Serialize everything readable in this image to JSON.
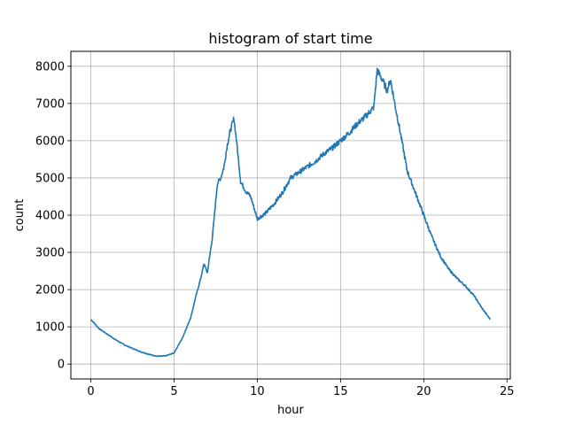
{
  "chart_data": {
    "type": "line",
    "title": "histogram of start time",
    "xlabel": "hour",
    "ylabel": "count",
    "xlim": [
      -1.2,
      25.2
    ],
    "ylim": [
      -400,
      8400
    ],
    "xticks": [
      0,
      5,
      10,
      15,
      20,
      25
    ],
    "yticks": [
      0,
      1000,
      2000,
      3000,
      4000,
      5000,
      6000,
      7000,
      8000
    ],
    "grid": true,
    "line_color": "#1f77b4",
    "series": [
      {
        "x": [
          0,
          0.5,
          1,
          1.5,
          2,
          2.5,
          3,
          3.5,
          4,
          4.5,
          5,
          5.5,
          6,
          6.3,
          6.6,
          6.8,
          7,
          7.3,
          7.6,
          7.8,
          8,
          8.2,
          8.4,
          8.6,
          8.8,
          9,
          9.3,
          9.6,
          10,
          10.5,
          11,
          11.5,
          12,
          12.5,
          13,
          13.5,
          14,
          14.5,
          15,
          15.5,
          16,
          16.5,
          17,
          17.2,
          17.5,
          17.8,
          18,
          18.3,
          18.6,
          19,
          19.5,
          20,
          20.5,
          21,
          21.5,
          22,
          22.5,
          23,
          23.5,
          24
        ],
        "y": [
          1200,
          950,
          800,
          650,
          520,
          420,
          330,
          260,
          210,
          220,
          300,
          700,
          1250,
          1800,
          2300,
          2700,
          2450,
          3400,
          4850,
          5000,
          5300,
          5900,
          6300,
          6600,
          5800,
          4900,
          4650,
          4500,
          3900,
          4050,
          4300,
          4600,
          5000,
          5150,
          5300,
          5450,
          5650,
          5800,
          6000,
          6200,
          6450,
          6650,
          6900,
          7900,
          7650,
          7350,
          7650,
          6900,
          6200,
          5200,
          4600,
          4000,
          3400,
          2900,
          2550,
          2300,
          2100,
          1850,
          1500,
          1200
        ]
      }
    ]
  }
}
